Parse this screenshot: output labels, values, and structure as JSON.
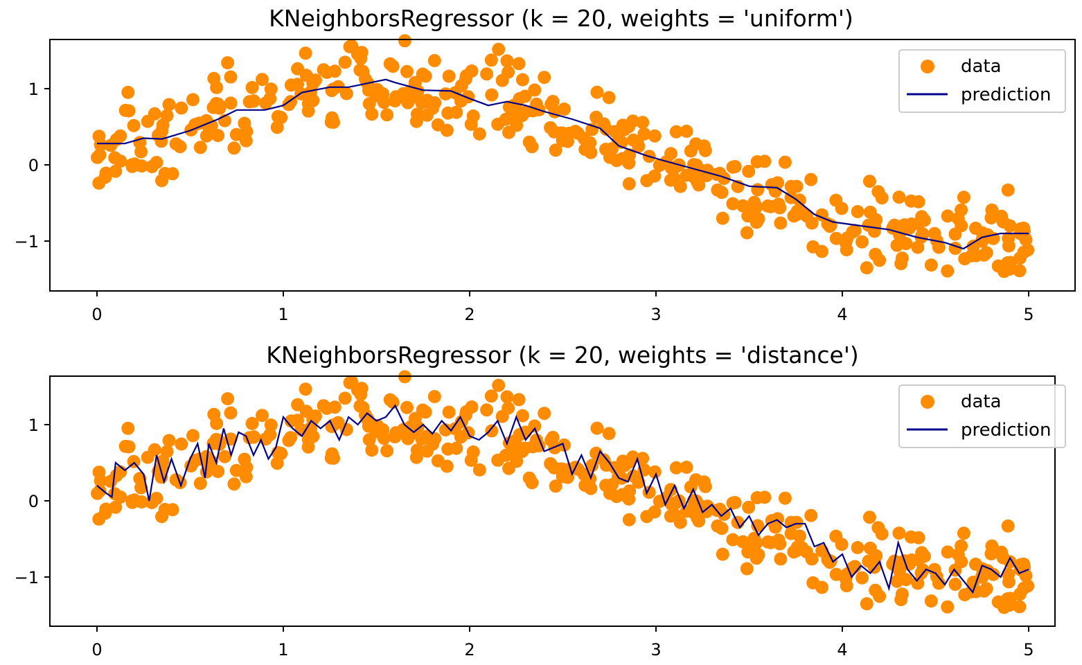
{
  "chart_data": [
    {
      "type": "scatter",
      "title": "KNeighborsRegressor (k = 20, weights = 'uniform')",
      "xlabel": "",
      "ylabel": "",
      "xlim": [
        -0.25,
        5.25
      ],
      "ylim": [
        -1.65,
        1.65
      ],
      "xticks": [
        0,
        1,
        2,
        3,
        4,
        5
      ],
      "xtick_labels": [
        "0",
        "1",
        "2",
        "3",
        "4",
        "5"
      ],
      "yticks": [
        -1,
        0,
        1
      ],
      "ytick_labels": [
        "−1",
        "0",
        "1"
      ],
      "grid": false,
      "legend": {
        "position": "top-right",
        "entries": [
          "data",
          "prediction"
        ]
      },
      "colors": {
        "data": "#ff8c00",
        "prediction": "#00008b"
      },
      "series": [
        {
          "name": "data",
          "kind": "scatter"
        },
        {
          "name": "prediction",
          "kind": "line",
          "x": [
            0,
            0.15,
            0.25,
            0.35,
            0.5,
            0.65,
            0.75,
            0.9,
            1.0,
            1.1,
            1.25,
            1.35,
            1.45,
            1.55,
            1.6,
            1.75,
            1.9,
            2.0,
            2.1,
            2.2,
            2.3,
            2.4,
            2.55,
            2.7,
            2.8,
            2.95,
            3.05,
            3.2,
            3.35,
            3.5,
            3.65,
            3.75,
            3.85,
            3.95,
            4.1,
            4.25,
            4.4,
            4.55,
            4.65,
            4.75,
            4.85,
            5.0
          ],
          "y": [
            0.28,
            0.28,
            0.35,
            0.34,
            0.45,
            0.6,
            0.72,
            0.72,
            0.78,
            0.95,
            1.02,
            1.02,
            1.07,
            1.12,
            1.08,
            0.98,
            0.97,
            0.87,
            0.78,
            0.83,
            0.78,
            0.7,
            0.6,
            0.48,
            0.25,
            0.12,
            0.05,
            -0.05,
            -0.15,
            -0.28,
            -0.3,
            -0.45,
            -0.65,
            -0.75,
            -0.8,
            -0.85,
            -0.95,
            -1.02,
            -1.1,
            -0.95,
            -0.9,
            -0.9
          ]
        }
      ]
    },
    {
      "type": "scatter",
      "title": "KNeighborsRegressor (k = 20, weights = 'distance')",
      "xlabel": "",
      "ylabel": "",
      "xlim": [
        -0.25,
        5.25
      ],
      "ylim": [
        -1.65,
        1.65
      ],
      "xticks": [
        0,
        1,
        2,
        3,
        4,
        5
      ],
      "xtick_labels": [
        "0",
        "1",
        "2",
        "3",
        "4",
        "5"
      ],
      "yticks": [
        -1,
        0,
        1
      ],
      "ytick_labels": [
        "−1",
        "0",
        "1"
      ],
      "grid": false,
      "legend": {
        "position": "top-right",
        "entries": [
          "data",
          "prediction"
        ]
      },
      "colors": {
        "data": "#ff8c00",
        "prediction": "#00008b"
      },
      "series": [
        {
          "name": "data",
          "kind": "scatter"
        },
        {
          "name": "prediction",
          "kind": "line",
          "x": [
            0,
            0.05,
            0.08,
            0.1,
            0.15,
            0.2,
            0.25,
            0.28,
            0.32,
            0.36,
            0.4,
            0.45,
            0.5,
            0.54,
            0.58,
            0.6,
            0.64,
            0.68,
            0.72,
            0.76,
            0.8,
            0.84,
            0.88,
            0.92,
            0.96,
            1.0,
            1.05,
            1.1,
            1.15,
            1.2,
            1.25,
            1.3,
            1.35,
            1.4,
            1.45,
            1.5,
            1.55,
            1.6,
            1.65,
            1.7,
            1.75,
            1.8,
            1.85,
            1.9,
            1.95,
            2.0,
            2.05,
            2.1,
            2.15,
            2.2,
            2.25,
            2.3,
            2.35,
            2.4,
            2.45,
            2.5,
            2.55,
            2.6,
            2.65,
            2.7,
            2.75,
            2.8,
            2.85,
            2.9,
            2.95,
            3.0,
            3.05,
            3.1,
            3.15,
            3.2,
            3.25,
            3.3,
            3.35,
            3.4,
            3.45,
            3.5,
            3.55,
            3.6,
            3.65,
            3.7,
            3.75,
            3.8,
            3.85,
            3.9,
            3.95,
            4.0,
            4.05,
            4.1,
            4.15,
            4.2,
            4.25,
            4.3,
            4.35,
            4.4,
            4.45,
            4.5,
            4.55,
            4.6,
            4.65,
            4.7,
            4.75,
            4.8,
            4.85,
            4.9,
            4.95,
            5.0
          ],
          "y": [
            0.2,
            0.1,
            0.05,
            0.5,
            0.4,
            0.5,
            0.35,
            0.0,
            0.6,
            0.25,
            0.55,
            0.2,
            0.55,
            0.75,
            0.3,
            0.75,
            0.5,
            0.95,
            0.6,
            0.9,
            0.85,
            0.6,
            0.8,
            0.55,
            0.7,
            1.1,
            0.95,
            0.85,
            1.05,
            0.95,
            1.05,
            0.8,
            1.1,
            1.0,
            1.15,
            1.05,
            1.1,
            1.25,
            1.0,
            0.9,
            1.0,
            0.88,
            1.05,
            0.92,
            1.1,
            0.85,
            0.8,
            0.9,
            1.05,
            0.75,
            1.1,
            0.8,
            0.95,
            0.65,
            0.7,
            0.75,
            0.35,
            0.6,
            0.3,
            0.65,
            0.5,
            0.3,
            0.25,
            0.55,
            0.1,
            0.35,
            -0.05,
            0.2,
            -0.1,
            0.15,
            -0.15,
            -0.05,
            -0.2,
            -0.1,
            -0.35,
            -0.2,
            -0.45,
            -0.3,
            -0.25,
            -0.35,
            -0.3,
            -0.3,
            -0.6,
            -0.55,
            -0.8,
            -0.7,
            -1.0,
            -0.85,
            -0.95,
            -0.8,
            -1.15,
            -0.55,
            -0.9,
            -1.05,
            -0.9,
            -0.95,
            -1.1,
            -0.9,
            -1.05,
            -1.2,
            -0.85,
            -0.9,
            -1.0,
            -0.75,
            -0.95,
            -0.9
          ]
        }
      ]
    }
  ]
}
